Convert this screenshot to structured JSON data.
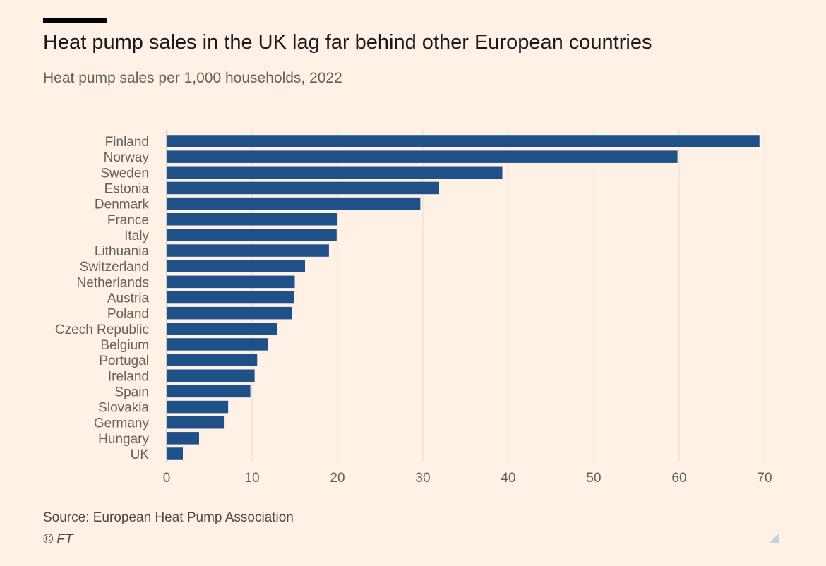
{
  "header": {
    "title": "Heat pump sales in the UK lag far behind other European countries",
    "subtitle": "Heat pump sales per 1,000 households, 2022"
  },
  "footer": {
    "source": "Source: European Heat Pump Association",
    "credit": "© FT"
  },
  "colors": {
    "background": "#fff1e5",
    "bar": "#1f5087",
    "gridline": "#e7dcd3",
    "axis_text": "#66605c"
  },
  "chart_data": {
    "type": "bar",
    "orientation": "horizontal",
    "title": "Heat pump sales in the UK lag far behind other European countries",
    "subtitle": "Heat pump sales per 1,000 households, 2022",
    "categories": [
      "Finland",
      "Norway",
      "Sweden",
      "Estonia",
      "Denmark",
      "France",
      "Italy",
      "Lithuania",
      "Switzerland",
      "Netherlands",
      "Austria",
      "Poland",
      "Czech Republic",
      "Belgium",
      "Portugal",
      "Ireland",
      "Spain",
      "Slovakia",
      "Germany",
      "Hungary",
      "UK"
    ],
    "values": [
      69.4,
      59.8,
      39.3,
      31.9,
      29.7,
      20.0,
      19.9,
      19.0,
      16.2,
      15.0,
      14.9,
      14.7,
      12.9,
      11.9,
      10.6,
      10.3,
      9.8,
      7.2,
      6.7,
      3.8,
      1.9
    ],
    "xlim": [
      0,
      70
    ],
    "xticks": [
      0,
      10,
      20,
      30,
      40,
      50,
      60,
      70
    ],
    "grid": true,
    "legend": "none"
  }
}
